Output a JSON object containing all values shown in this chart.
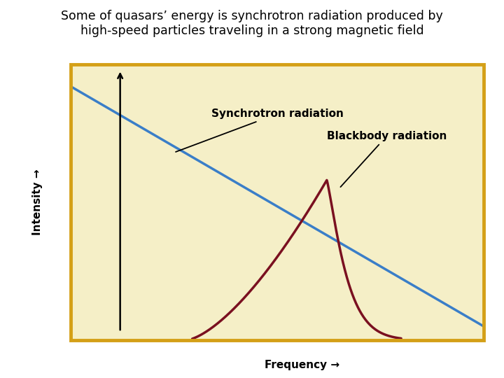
{
  "title_line1": "Some of quasars’ energy is synchrotron radiation produced by",
  "title_line2": "high-speed particles traveling in a strong magnetic field",
  "xlabel": "Frequency →",
  "ylabel": "Intensity →",
  "background_color": "#f5efc7",
  "border_color": "#d4a017",
  "fig_background": "white",
  "synchrotron_color": "#3a7ec8",
  "blackbody_color": "#7a1020",
  "synchrotron_label": "Synchrotron radiation",
  "blackbody_label": "Blackbody radiation",
  "title_fontsize": 12.5,
  "axis_label_fontsize": 11,
  "annotation_fontsize": 11
}
